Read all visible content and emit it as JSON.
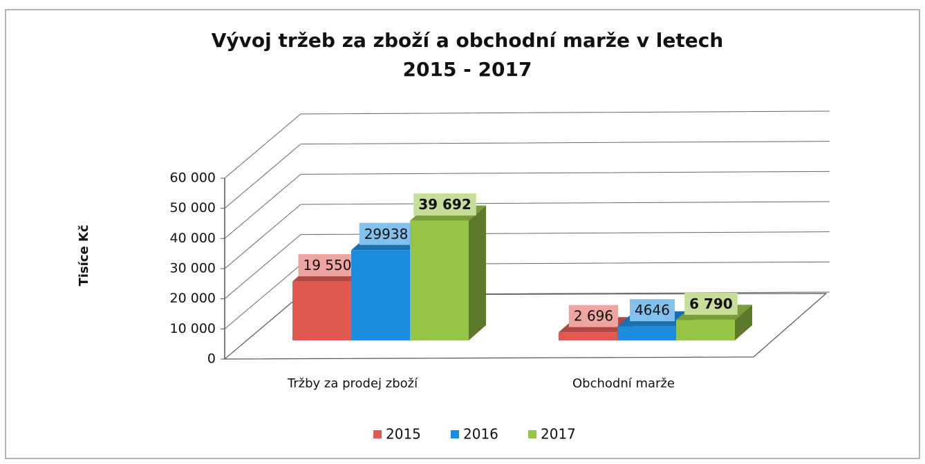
{
  "chart_data": {
    "type": "bar3d",
    "title": [
      "Vývoj tržeb za zboží a obchodní marže v letech",
      "2015 - 2017"
    ],
    "ylabel": "Tisíce Kč",
    "categories": [
      "Tržby za prodej zboží",
      "Obchodní marže"
    ],
    "series": [
      {
        "name": "2015",
        "color": "#e05a52",
        "values": [
          19550,
          2696
        ],
        "value_labels": [
          "19 550",
          "2 696"
        ]
      },
      {
        "name": "2016",
        "color": "#1b8de0",
        "values": [
          29938,
          4646
        ],
        "value_labels": [
          "29938",
          "4646"
        ]
      },
      {
        "name": "2017",
        "color": "#96c447",
        "values": [
          39692,
          6790
        ],
        "value_labels": [
          "39 692",
          "6 790"
        ]
      }
    ],
    "ylim": [
      0,
      60000
    ],
    "yticks": [
      0,
      {
        "value": 10000,
        "label": "10 000"
      },
      {
        "value": 20000,
        "label": "20 000"
      },
      {
        "value": 30000,
        "label": "30 000"
      },
      {
        "value": 40000,
        "label": "40 000"
      },
      {
        "value": 50000,
        "label": "50 000"
      },
      {
        "value": 60000,
        "label": "60 000"
      }
    ],
    "grid": true,
    "legend": "bottom"
  }
}
